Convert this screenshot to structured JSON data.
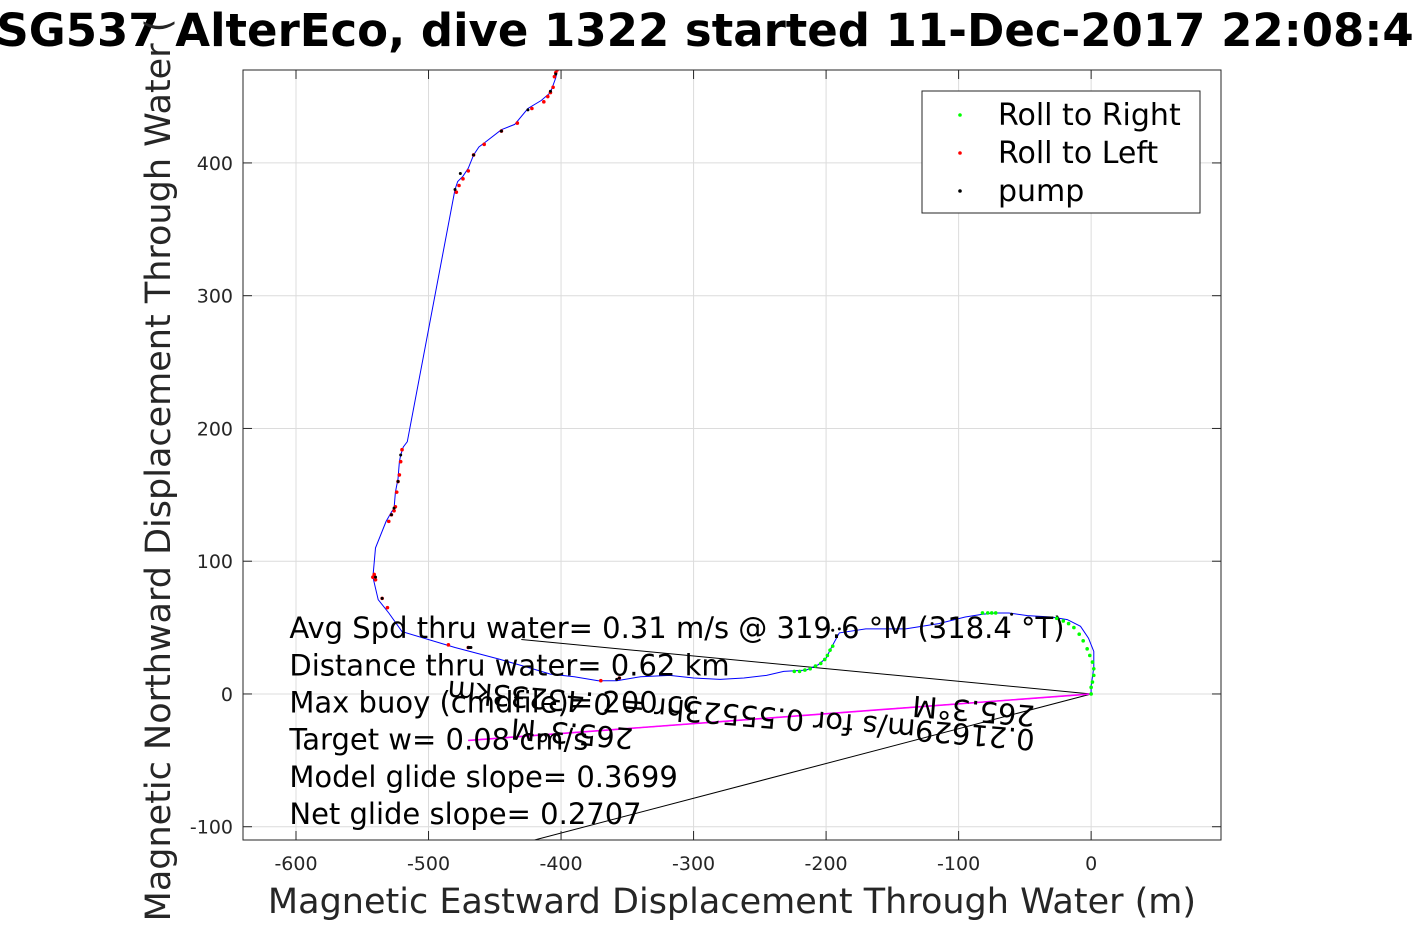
{
  "chart_data": {
    "type": "line",
    "title": "SG537 AlterEco, dive 1322 started 11-Dec-2017 22:08:4",
    "xlabel": "Magnetic Eastward Displacement Through Water (m)",
    "ylabel": "Magnetic Northward Displacement Through Water (",
    "xlim": [
      -640,
      98
    ],
    "ylim": [
      -110,
      470
    ],
    "x_ticks": [
      -600,
      -500,
      -400,
      -300,
      -200,
      -100,
      0
    ],
    "y_ticks": [
      -100,
      0,
      100,
      200,
      300,
      400
    ],
    "grid": true,
    "legend_position": "top-right",
    "legend": [
      {
        "label": "Roll to Right",
        "color": "#00ff00"
      },
      {
        "label": "Roll to Left",
        "color": "#ff0000"
      },
      {
        "label": "pump",
        "color": "#000000"
      }
    ],
    "track": {
      "name": "track",
      "color": "#0000ff",
      "x": [
        0,
        0,
        2,
        2,
        -2,
        -8,
        -18,
        -30,
        -48,
        -62,
        -72,
        -82,
        -95,
        -115,
        -140,
        -170,
        -190,
        -196,
        -200,
        -206,
        -215,
        -232,
        -245,
        -262,
        -280,
        -300,
        -318,
        -340,
        -358,
        -372,
        -390,
        -408,
        -425,
        -446,
        -480,
        -520,
        -530,
        -538,
        -542,
        -540,
        -532,
        -528,
        -526,
        -525,
        -523,
        -522,
        -521,
        -519,
        -516,
        -480,
        -478,
        -474,
        -470,
        -466,
        -462,
        -458,
        -445,
        -435,
        -425,
        -415,
        -408,
        -404,
        -403,
        -402
      ],
      "y": [
        0,
        6,
        20,
        32,
        42,
        51,
        56,
        58,
        59,
        61,
        61,
        60,
        58,
        53,
        49,
        49,
        46,
        35,
        27,
        22,
        18,
        17,
        14,
        12,
        11,
        12,
        14,
        13,
        10,
        10,
        13,
        15,
        20,
        26,
        35,
        47,
        61,
        71,
        88,
        110,
        130,
        137,
        140,
        152,
        162,
        175,
        180,
        186,
        190,
        380,
        386,
        390,
        396,
        406,
        412,
        415,
        425,
        429,
        441,
        447,
        453,
        464,
        469,
        472
      ]
    },
    "roll_right": {
      "x": [
        0,
        0,
        1,
        2,
        2,
        1,
        -1,
        -3,
        -6,
        -9,
        -13,
        -17,
        -21,
        -26,
        -72,
        -75,
        -78,
        -82,
        -195,
        -197,
        -199,
        -201,
        -204,
        -208,
        -212,
        -216,
        -220,
        -224
      ],
      "y": [
        0,
        5,
        9,
        14,
        19,
        24,
        29,
        34,
        40,
        45,
        50,
        53,
        55,
        57,
        61,
        61,
        61,
        61,
        36,
        33,
        29,
        26,
        23,
        21,
        19,
        18,
        17,
        17
      ]
    },
    "roll_left": {
      "x": [
        -542,
        -541,
        -540,
        -535,
        -531,
        -530,
        -528,
        -526,
        -525,
        -524,
        -523,
        -522,
        -521,
        -520,
        -479,
        -477,
        -474,
        -470,
        -466,
        -458,
        -445,
        -433,
        -422,
        -413,
        -410,
        -408,
        -406,
        -405,
        -404,
        -403,
        -402,
        -470,
        -485,
        -356,
        -370
      ],
      "y": [
        88,
        90,
        86,
        72,
        65,
        130,
        135,
        138,
        141,
        152,
        160,
        165,
        175,
        184,
        378,
        383,
        388,
        394,
        406,
        414,
        424,
        430,
        441,
        446,
        450,
        453,
        457,
        465,
        468,
        470,
        472,
        35,
        37,
        12,
        10
      ]
    },
    "pump": {
      "x": [
        -470,
        -469,
        -468,
        -540,
        -535,
        -528,
        -526,
        -523,
        -521,
        -480,
        -476,
        -466,
        -445,
        -425,
        -408,
        -404,
        -195,
        -190,
        -185,
        -120,
        -60,
        -356,
        -358
      ],
      "y": [
        35,
        35,
        35,
        88,
        72,
        135,
        140,
        160,
        180,
        380,
        392,
        406,
        424,
        440,
        454,
        467,
        48,
        49,
        49,
        53,
        60,
        12,
        11
      ]
    },
    "magenta_line": {
      "color": "#ff00ff",
      "x": [
        0,
        -470
      ],
      "y": [
        0,
        -35
      ]
    },
    "black_lines": [
      {
        "x": [
          0,
          -430
        ],
        "y": [
          0,
          41
        ]
      },
      {
        "x": [
          0,
          -470
        ],
        "y": [
          0,
          -35
        ]
      },
      {
        "x": [
          0,
          -420
        ],
        "y": [
          0,
          -110
        ]
      }
    ],
    "annotations": [
      {
        "text": "Avg Spd thru water=  0.31 m/s @ 319.6 °M (318.4 °T)",
        "x": -605,
        "y": 42
      },
      {
        "text": "Distance thru water=  0.62 km",
        "x": -605,
        "y": 14
      },
      {
        "text": "Max buoy (cmdfile)= 200 cc",
        "x": -605,
        "y": -14
      },
      {
        "text": "Target w= 0.08 cm/s",
        "x": -605,
        "y": -42
      },
      {
        "text": "Model glide slope= 0.3699",
        "x": -605,
        "y": -70
      },
      {
        "text": "Net glide slope= 0.2707",
        "x": -605,
        "y": -98
      }
    ],
    "rotated_annotations": [
      {
        "text": "265.3°M",
        "x": -42,
        "y": -9,
        "rotate": 184.8
      },
      {
        "text": "0.21629m/s for 0.55523hr = 0.43233km",
        "x": -42,
        "y": -27,
        "rotate": 184.8
      },
      {
        "text": "265.3°M",
        "x": -345,
        "y": -26,
        "rotate": 184.8
      }
    ]
  }
}
